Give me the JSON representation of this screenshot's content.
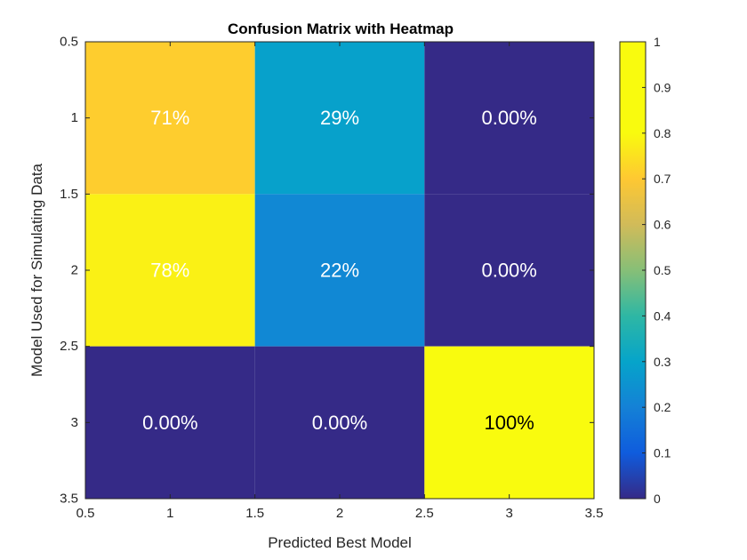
{
  "chart_data": {
    "type": "heatmap",
    "title": "Confusion Matrix with Heatmap",
    "xlabel": "Predicted Best Model",
    "ylabel": "Model Used for Simulating Data",
    "x_categories": [
      1,
      2,
      3
    ],
    "y_categories": [
      1,
      2,
      3
    ],
    "values": [
      [
        0.71,
        0.29,
        0.0
      ],
      [
        0.78,
        0.22,
        0.0
      ],
      [
        0.0,
        0.0,
        1.0
      ]
    ],
    "cell_labels": [
      [
        "71%",
        "29%",
        "0.00%"
      ],
      [
        "78%",
        "22%",
        "0.00%"
      ],
      [
        "0.00%",
        "0.00%",
        "100%"
      ]
    ],
    "cell_label_colors": [
      [
        "#ffffff",
        "#ffffff",
        "#ffffff"
      ],
      [
        "#ffffff",
        "#ffffff",
        "#ffffff"
      ],
      [
        "#ffffff",
        "#ffffff",
        "#000000"
      ]
    ],
    "xlim": [
      0.5,
      3.5
    ],
    "ylim": [
      0.5,
      3.5
    ],
    "y_reversed": true,
    "x_ticks": [
      "0.5",
      "1",
      "1.5",
      "2",
      "2.5",
      "3",
      "3.5"
    ],
    "y_ticks": [
      "0.5",
      "1",
      "1.5",
      "2",
      "2.5",
      "3",
      "3.5"
    ],
    "colormap": "parula",
    "colorbar": {
      "range": [
        0,
        1
      ],
      "ticks": [
        "0",
        "0.1",
        "0.2",
        "0.3",
        "0.4",
        "0.5",
        "0.6",
        "0.7",
        "0.8",
        "0.9",
        "1"
      ]
    },
    "grid": false
  }
}
